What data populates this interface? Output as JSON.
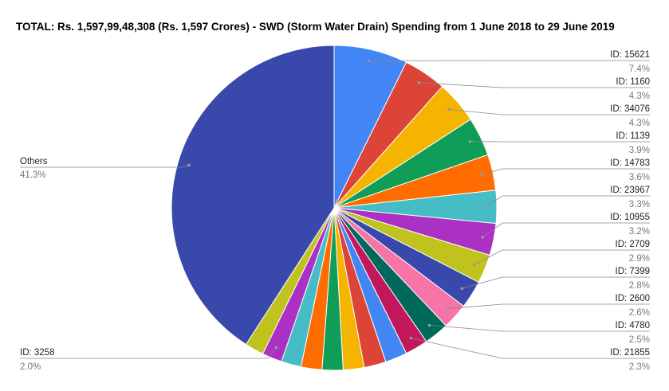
{
  "chart_data": {
    "type": "pie",
    "title": "TOTAL: Rs. 1,597,99,48,308 (Rs. 1,597 Crores)  - SWD (Storm Water Drain) Spending from 1 June 2018 to 29 June 2019",
    "start_angle_deg": 0,
    "direction": "clockwise",
    "slices": [
      {
        "label": "ID: 15621",
        "pct_label": "7.4%",
        "value": 7.4,
        "color": "#4285f4"
      },
      {
        "label": "ID: 1160",
        "pct_label": "4.3%",
        "value": 4.3,
        "color": "#db4437"
      },
      {
        "label": "ID: 34076",
        "pct_label": "4.3%",
        "value": 4.3,
        "color": "#f4b400"
      },
      {
        "label": "ID: 1139",
        "pct_label": "3.9%",
        "value": 3.9,
        "color": "#0f9d58"
      },
      {
        "label": "ID: 14783",
        "pct_label": "3.6%",
        "value": 3.6,
        "color": "#ff6d01"
      },
      {
        "label": "ID: 23967",
        "pct_label": "3.3%",
        "value": 3.3,
        "color": "#46bdc6"
      },
      {
        "label": "ID: 10955",
        "pct_label": "3.2%",
        "value": 3.2,
        "color": "#ab30c4"
      },
      {
        "label": "ID: 2709",
        "pct_label": "2.9%",
        "value": 2.9,
        "color": "#c0c21d"
      },
      {
        "label": "ID: 7399",
        "pct_label": "2.8%",
        "value": 2.8,
        "color": "#3949ab"
      },
      {
        "label": "ID: 2600",
        "pct_label": "2.6%",
        "value": 2.6,
        "color": "#f774a6"
      },
      {
        "label": "ID: 4780",
        "pct_label": "2.5%",
        "value": 2.5,
        "color": "#00695c"
      },
      {
        "label": "ID: 21855",
        "pct_label": "2.3%",
        "value": 2.3,
        "color": "#c2185b"
      },
      {
        "label": "",
        "pct_label": "",
        "value": 2.2,
        "color": "#4285f4"
      },
      {
        "label": "",
        "pct_label": "",
        "value": 2.2,
        "color": "#db4437"
      },
      {
        "label": "",
        "pct_label": "",
        "value": 2.1,
        "color": "#f4b400"
      },
      {
        "label": "",
        "pct_label": "",
        "value": 2.1,
        "color": "#0f9d58"
      },
      {
        "label": "",
        "pct_label": "",
        "value": 2.1,
        "color": "#ff6d01"
      },
      {
        "label": "",
        "pct_label": "",
        "value": 2.0,
        "color": "#46bdc6"
      },
      {
        "label": "ID: 3258",
        "pct_label": "2.0%",
        "value": 2.0,
        "color": "#ab30c4"
      },
      {
        "label": "",
        "pct_label": "",
        "value": 1.9,
        "color": "#c0c21d"
      },
      {
        "label": "Others",
        "pct_label": "41.3%",
        "value": 41.3,
        "color": "#3949ab"
      }
    ]
  }
}
